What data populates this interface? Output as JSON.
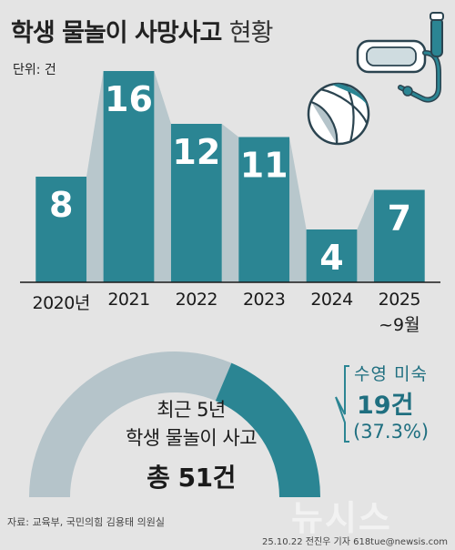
{
  "header": {
    "title_bold": "학생 물놀이 사망사고",
    "title_light": "현황"
  },
  "unit_label": "단위: 건",
  "chart_data": [
    {
      "type": "bar",
      "ylabel": "",
      "categories": [
        "2020년",
        "2021",
        "2022",
        "2023",
        "2024",
        "2025 ~9월"
      ],
      "category_lines": [
        [
          "2020년"
        ],
        [
          "2021"
        ],
        [
          "2022"
        ],
        [
          "2023"
        ],
        [
          "2024"
        ],
        [
          "2025",
          "~9월"
        ]
      ],
      "values": [
        8,
        16,
        12,
        11,
        4,
        7
      ],
      "ylim": [
        0,
        16
      ],
      "grid": false,
      "bar_color": "#2b8593",
      "value_label_color": "#ffffff"
    },
    {
      "type": "pie",
      "subtype": "half-donut",
      "total_label_lines": [
        "최근 5년",
        "학생 물놀이 사고",
        "총 51건"
      ],
      "total": 51,
      "slices": [
        {
          "label": "수영 미숙",
          "value": 19,
          "value_text": "19건",
          "percent_text": "(37.3%)",
          "color": "#2b8593"
        },
        {
          "label": "",
          "value": 32,
          "color": "#b5c4ca"
        }
      ]
    }
  ],
  "source": "자료: 교육부, 국민의힘 김용태 의원실",
  "credit": "25.10.22 전진우 기자 618tue@newsis.com",
  "watermark": "뉴시스",
  "decor": {
    "icons": [
      "beach-ball-icon",
      "snorkel-mask-icon"
    ],
    "accent_color": "#2b8593",
    "background_color": "#e4e4e4",
    "shade_color": "#b8c7cc"
  }
}
